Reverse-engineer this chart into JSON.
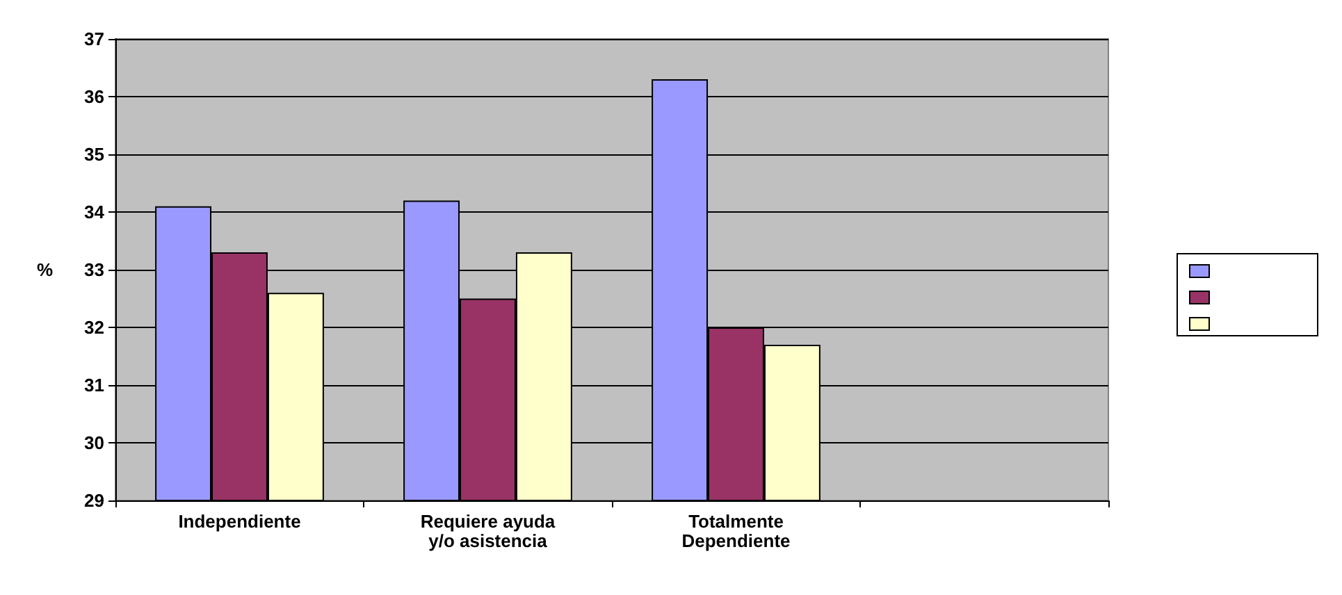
{
  "chart_data": {
    "type": "bar",
    "ylabel": "%",
    "categories": [
      "Independiente",
      "Requiere ayuda\ny/o asistencia",
      "Totalmente\nDependiente",
      null
    ],
    "series": [
      {
        "color": "#9999ff",
        "values": [
          34.1,
          34.2,
          36.3,
          null
        ]
      },
      {
        "color": "#993366",
        "values": [
          33.3,
          32.5,
          32.0,
          null
        ]
      },
      {
        "color": "#ffffcc",
        "values": [
          32.6,
          33.3,
          31.7,
          null
        ]
      }
    ],
    "ylim": [
      29,
      37
    ],
    "yticks": [
      29,
      30,
      31,
      32,
      33,
      34,
      35,
      36,
      37
    ],
    "grid": "y"
  }
}
